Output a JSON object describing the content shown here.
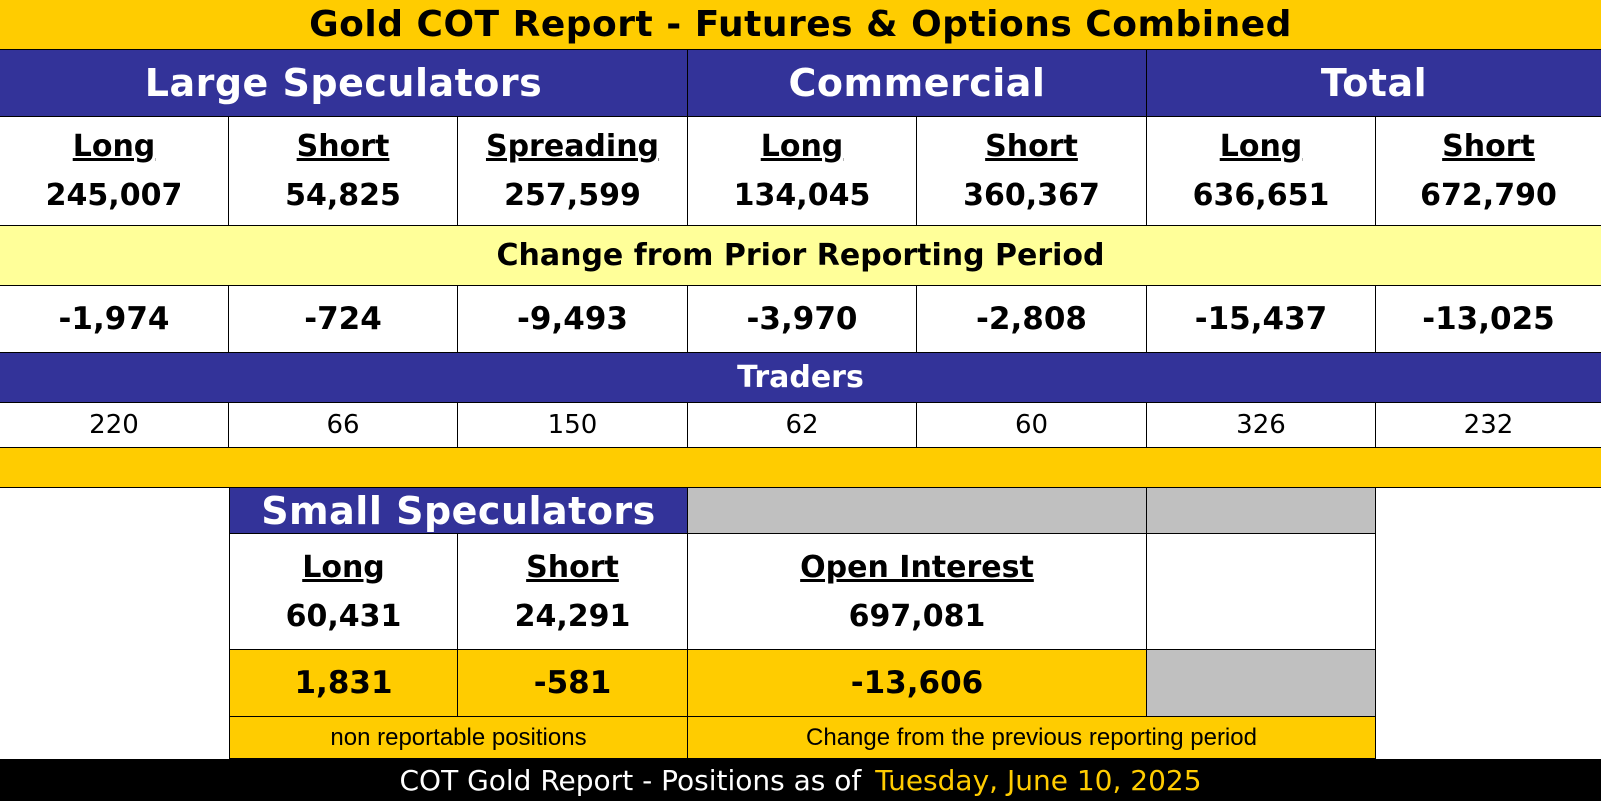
{
  "title": "Gold COT Report - Futures & Options Combined",
  "groups": {
    "large_speculators": "Large Speculators",
    "commercial": "Commercial",
    "total": "Total"
  },
  "columns": [
    {
      "label": "Long",
      "position": "245,007",
      "change": "-1,974",
      "traders": "220"
    },
    {
      "label": "Short",
      "position": "54,825",
      "change": "-724",
      "traders": "66"
    },
    {
      "label": "Spreading",
      "position": "257,599",
      "change": "-9,493",
      "traders": "150"
    },
    {
      "label": "Long",
      "position": "134,045",
      "change": "-3,970",
      "traders": "62"
    },
    {
      "label": "Short",
      "position": "360,367",
      "change": "-2,808",
      "traders": "60"
    },
    {
      "label": "Long",
      "position": "636,651",
      "change": "-15,437",
      "traders": "326"
    },
    {
      "label": "Short",
      "position": "672,790",
      "change": "-13,025",
      "traders": "232"
    }
  ],
  "change_header": "Change from Prior Reporting Period",
  "traders_header": "Traders",
  "small_speculators": {
    "title": "Small Speculators",
    "long_label": "Long",
    "long_value": "60,431",
    "long_change": "1,831",
    "short_label": "Short",
    "short_value": "24,291",
    "short_change": "-581",
    "note": "non reportable positions"
  },
  "open_interest": {
    "label": "Open Interest",
    "value": "697,081",
    "change": "-13,606",
    "note": "Change from the previous reporting period"
  },
  "footer": {
    "prefix": "COT Gold Report - Positions as of",
    "date": "Tuesday, June 10, 2025"
  },
  "colors": {
    "gold": "#ffcc00",
    "pale_yellow": "#ffff99",
    "navy": "#333399",
    "gray": "#c0c0c0"
  }
}
